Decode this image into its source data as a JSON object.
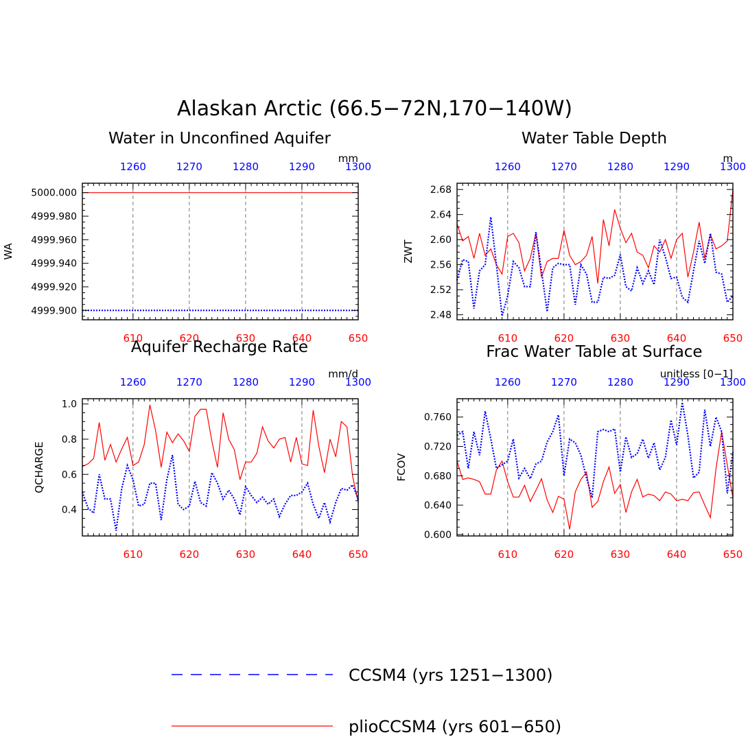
{
  "title": "Alaskan Arctic (66.5−72N,170−140W)",
  "legend": [
    {
      "label": "CCSM4 (yrs 1251−1300)",
      "color": "#0000ff",
      "style": "dashed"
    },
    {
      "label": "plioCCSM4 (yrs 601−650)",
      "color": "#ff0000",
      "style": "solid"
    }
  ],
  "chart_data": [
    {
      "type": "line",
      "title": "Water in Unconfined Aquifer",
      "ylabel": "WA",
      "units": "mm",
      "ylim": [
        4999.892,
        5000.008
      ],
      "yticks": [
        4999.9,
        4999.92,
        4999.94,
        4999.96,
        4999.98,
        5000.0
      ],
      "ytick_labels": [
        "4999.900",
        "4999.920",
        "4999.940",
        "4999.960",
        "4999.980",
        "5000.000"
      ],
      "bottom_axis": {
        "range": [
          601,
          650
        ],
        "ticks": [
          610,
          620,
          630,
          640,
          650
        ],
        "color": "#ff0000"
      },
      "top_axis": {
        "range": [
          1251,
          1300
        ],
        "ticks": [
          1260,
          1270,
          1280,
          1290,
          1300
        ],
        "color": "#0000ff"
      },
      "series": [
        {
          "name": "plioCCSM4",
          "color": "#ff0000",
          "style": "solid",
          "values": [
            5000.0,
            5000.0,
            5000.0,
            5000.0,
            5000.0,
            5000.0,
            5000.0,
            5000.0,
            5000.0,
            5000.0,
            5000.0,
            5000.0,
            5000.0,
            5000.0,
            5000.0,
            5000.0,
            5000.0,
            5000.0,
            5000.0,
            5000.0,
            5000.0,
            5000.0,
            5000.0,
            5000.0,
            5000.0,
            5000.0,
            5000.0,
            5000.0,
            5000.0,
            5000.0,
            5000.0,
            5000.0,
            5000.0,
            5000.0,
            5000.0,
            5000.0,
            5000.0,
            5000.0,
            5000.0,
            5000.0,
            5000.0,
            5000.0,
            5000.0,
            5000.0,
            5000.0,
            5000.0,
            5000.0,
            5000.0,
            5000.0,
            5000.0
          ]
        },
        {
          "name": "CCSM4",
          "color": "#0000ff",
          "style": "dashed",
          "values": [
            4999.9,
            4999.9,
            4999.9,
            4999.9,
            4999.9,
            4999.9,
            4999.9,
            4999.9,
            4999.9,
            4999.9,
            4999.9,
            4999.9,
            4999.9,
            4999.9,
            4999.9,
            4999.9,
            4999.9,
            4999.9,
            4999.9,
            4999.9,
            4999.9,
            4999.9,
            4999.9,
            4999.9,
            4999.9,
            4999.9,
            4999.9,
            4999.9,
            4999.9,
            4999.9,
            4999.9,
            4999.9,
            4999.9,
            4999.9,
            4999.9,
            4999.9,
            4999.9,
            4999.9,
            4999.9,
            4999.9,
            4999.9,
            4999.9,
            4999.9,
            4999.9,
            4999.9,
            4999.9,
            4999.9,
            4999.9,
            4999.9,
            4999.9
          ]
        }
      ]
    },
    {
      "type": "line",
      "title": "Water Table Depth",
      "ylabel": "ZWT",
      "units": "m",
      "ylim": [
        2.472,
        2.69
      ],
      "yticks": [
        2.48,
        2.52,
        2.56,
        2.6,
        2.64,
        2.68
      ],
      "ytick_labels": [
        "2.48",
        "2.52",
        "2.56",
        "2.60",
        "2.64",
        "2.68"
      ],
      "bottom_axis": {
        "range": [
          601,
          650
        ],
        "ticks": [
          610,
          620,
          630,
          640,
          650
        ],
        "color": "#ff0000"
      },
      "top_axis": {
        "range": [
          1251,
          1300
        ],
        "ticks": [
          1260,
          1270,
          1280,
          1290,
          1300
        ],
        "color": "#0000ff"
      },
      "series": [
        {
          "name": "plioCCSM4",
          "color": "#ff0000",
          "style": "solid",
          "values": [
            2.625,
            2.598,
            2.605,
            2.57,
            2.61,
            2.575,
            2.585,
            2.56,
            2.545,
            2.605,
            2.61,
            2.595,
            2.55,
            2.57,
            2.61,
            2.54,
            2.565,
            2.57,
            2.57,
            2.615,
            2.575,
            2.56,
            2.565,
            2.575,
            2.605,
            2.53,
            2.632,
            2.59,
            2.648,
            2.618,
            2.595,
            2.61,
            2.58,
            2.575,
            2.555,
            2.59,
            2.58,
            2.6,
            2.57,
            2.6,
            2.61,
            2.54,
            2.58,
            2.628,
            2.57,
            2.608,
            2.585,
            2.59,
            2.598,
            2.68
          ]
        },
        {
          "name": "CCSM4",
          "color": "#0000ff",
          "style": "dashed",
          "values": [
            2.535,
            2.568,
            2.565,
            2.49,
            2.55,
            2.56,
            2.636,
            2.56,
            2.478,
            2.51,
            2.565,
            2.555,
            2.525,
            2.525,
            2.612,
            2.55,
            2.485,
            2.555,
            2.562,
            2.56,
            2.56,
            2.496,
            2.56,
            2.545,
            2.5,
            2.5,
            2.54,
            2.538,
            2.543,
            2.576,
            2.525,
            2.518,
            2.555,
            2.53,
            2.55,
            2.528,
            2.6,
            2.572,
            2.538,
            2.54,
            2.508,
            2.5,
            2.55,
            2.598,
            2.562,
            2.61,
            2.548,
            2.545,
            2.5,
            2.51
          ]
        }
      ]
    },
    {
      "type": "line",
      "title": "Aquifer Recharge Rate",
      "ylabel": "QCHARGE",
      "units": "mm/d",
      "ylim": [
        0.25,
        1.03
      ],
      "yticks": [
        0.4,
        0.6,
        0.8,
        1.0
      ],
      "ytick_labels": [
        "0.4",
        "0.6",
        "0.8",
        "1.0"
      ],
      "bottom_axis": {
        "range": [
          601,
          650
        ],
        "ticks": [
          610,
          620,
          630,
          640,
          650
        ],
        "color": "#ff0000"
      },
      "top_axis": {
        "range": [
          1251,
          1300
        ],
        "ticks": [
          1260,
          1270,
          1280,
          1290,
          1300
        ],
        "color": "#0000ff"
      },
      "series": [
        {
          "name": "plioCCSM4",
          "color": "#ff0000",
          "style": "solid",
          "values": [
            0.645,
            0.66,
            0.69,
            0.895,
            0.68,
            0.77,
            0.67,
            0.745,
            0.81,
            0.65,
            0.67,
            0.77,
            0.995,
            0.85,
            0.64,
            0.84,
            0.78,
            0.83,
            0.79,
            0.73,
            0.93,
            0.97,
            0.97,
            0.79,
            0.64,
            0.95,
            0.8,
            0.74,
            0.57,
            0.67,
            0.67,
            0.72,
            0.87,
            0.79,
            0.75,
            0.8,
            0.81,
            0.67,
            0.81,
            0.66,
            0.65,
            0.965,
            0.76,
            0.61,
            0.8,
            0.7,
            0.9,
            0.87,
            0.59,
            0.44
          ]
        },
        {
          "name": "CCSM4",
          "color": "#0000ff",
          "style": "dashed",
          "values": [
            0.5,
            0.41,
            0.38,
            0.6,
            0.46,
            0.46,
            0.28,
            0.52,
            0.65,
            0.57,
            0.42,
            0.43,
            0.55,
            0.55,
            0.34,
            0.57,
            0.71,
            0.43,
            0.4,
            0.42,
            0.56,
            0.44,
            0.42,
            0.61,
            0.55,
            0.46,
            0.51,
            0.46,
            0.37,
            0.53,
            0.48,
            0.44,
            0.47,
            0.43,
            0.46,
            0.36,
            0.43,
            0.48,
            0.48,
            0.5,
            0.55,
            0.43,
            0.35,
            0.44,
            0.33,
            0.44,
            0.52,
            0.51,
            0.54,
            0.46
          ]
        }
      ]
    },
    {
      "type": "line",
      "title": "Frac Water Table at Surface",
      "ylabel": "FCOV",
      "units": "unitless [0−1]",
      "ylim": [
        0.598,
        0.785
      ],
      "yticks": [
        0.6,
        0.64,
        0.68,
        0.72,
        0.76
      ],
      "ytick_labels": [
        "0.600",
        "0.640",
        "0.680",
        "0.720",
        "0.760"
      ],
      "bottom_axis": {
        "range": [
          601,
          650
        ],
        "ticks": [
          610,
          620,
          630,
          640,
          650
        ],
        "color": "#ff0000"
      },
      "top_axis": {
        "range": [
          1251,
          1300
        ],
        "ticks": [
          1260,
          1270,
          1280,
          1290,
          1300
        ],
        "color": "#0000ff"
      },
      "series": [
        {
          "name": "plioCCSM4",
          "color": "#ff0000",
          "style": "solid",
          "values": [
            0.7,
            0.675,
            0.677,
            0.675,
            0.672,
            0.655,
            0.655,
            0.688,
            0.7,
            0.672,
            0.651,
            0.651,
            0.667,
            0.645,
            0.66,
            0.676,
            0.647,
            0.63,
            0.652,
            0.648,
            0.607,
            0.658,
            0.675,
            0.685,
            0.637,
            0.645,
            0.672,
            0.692,
            0.656,
            0.668,
            0.63,
            0.658,
            0.675,
            0.651,
            0.655,
            0.653,
            0.646,
            0.658,
            0.655,
            0.646,
            0.648,
            0.646,
            0.657,
            0.658,
            0.64,
            0.623,
            0.69,
            0.74,
            0.695,
            0.65
          ]
        },
        {
          "name": "CCSM4",
          "color": "#0000ff",
          "style": "dashed",
          "values": [
            0.735,
            0.74,
            0.69,
            0.74,
            0.708,
            0.768,
            0.73,
            0.69,
            0.695,
            0.7,
            0.73,
            0.677,
            0.69,
            0.676,
            0.696,
            0.7,
            0.726,
            0.74,
            0.763,
            0.68,
            0.73,
            0.725,
            0.708,
            0.677,
            0.65,
            0.74,
            0.743,
            0.74,
            0.744,
            0.685,
            0.733,
            0.705,
            0.71,
            0.73,
            0.704,
            0.725,
            0.688,
            0.705,
            0.756,
            0.722,
            0.78,
            0.735,
            0.677,
            0.685,
            0.77,
            0.72,
            0.76,
            0.74,
            0.656,
            0.712
          ]
        }
      ]
    }
  ]
}
